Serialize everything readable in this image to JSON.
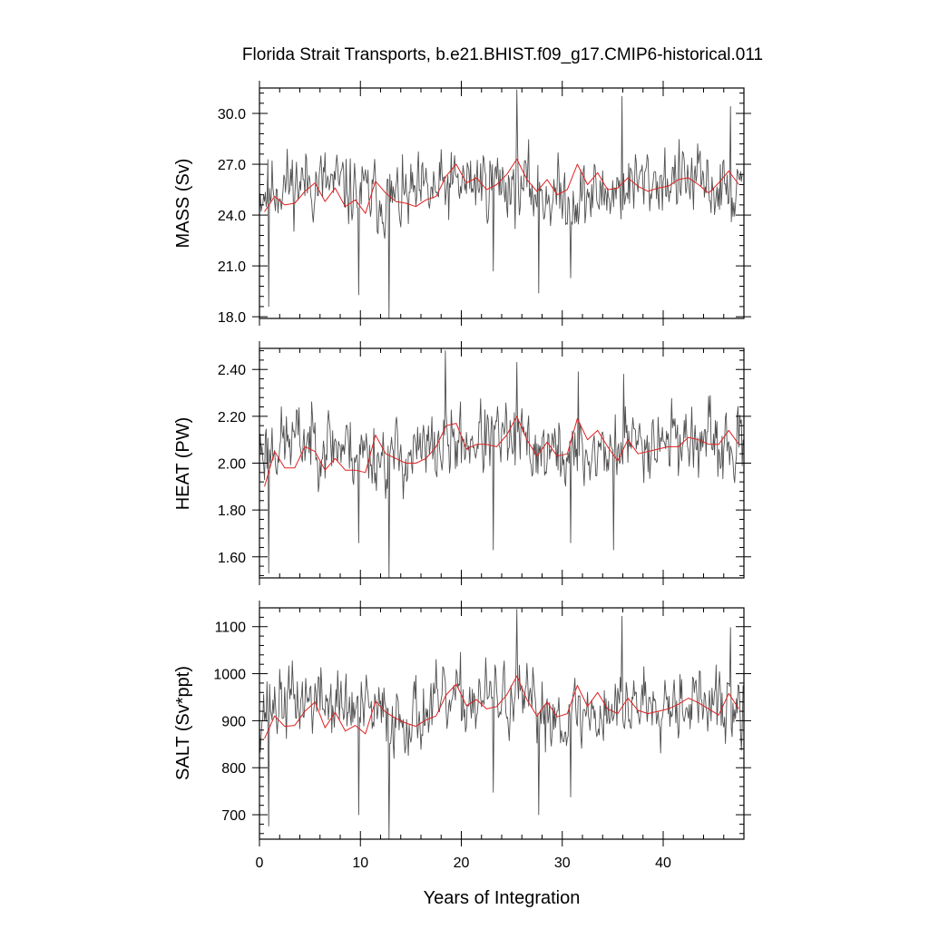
{
  "figure": {
    "title": "Florida Strait Transports, b.e21.BHIST.f09_g17.CMIP6-historical.011",
    "xlabel": "Years of Integration",
    "xlim": [
      0,
      48
    ],
    "x_ticks": [
      0,
      10,
      20,
      30,
      40
    ],
    "x_tick_labels": [
      "0",
      "10",
      "20",
      "30",
      "40"
    ]
  },
  "colors": {
    "monthly": "#505050",
    "annual": "#e02020",
    "axes": "#000000"
  },
  "chart_data": [
    {
      "type": "line",
      "ylabel": "MASS (Sv)",
      "ylim": [
        17.9,
        31.5
      ],
      "y_ticks": [
        18,
        21,
        24,
        27,
        30
      ],
      "y_tick_labels": [
        "18.0",
        "21.0",
        "24.0",
        "27.0",
        "30.0"
      ],
      "series": [
        {
          "kind": "monthly",
          "base": 25.4,
          "amp": 1.5,
          "seed": 11,
          "spikes": [
            [
              0.9,
              18.6
            ],
            [
              9.8,
              19.3
            ],
            [
              12.8,
              17.9
            ],
            [
              23.2,
              20.7
            ],
            [
              25.5,
              31.4
            ],
            [
              27.7,
              19.4
            ],
            [
              30.8,
              20.3
            ],
            [
              35.9,
              31.0
            ],
            [
              46.7,
              30.4
            ]
          ]
        },
        {
          "kind": "annual",
          "x": [
            0.5,
            1.5,
            2.5,
            3.5,
            4.5,
            5.5,
            6.5,
            7.5,
            8.5,
            9.5,
            10.5,
            11.5,
            12.5,
            13.5,
            14.5,
            15.5,
            16.5,
            17.5,
            18.5,
            19.5,
            20.5,
            21.5,
            22.5,
            23.5,
            24.5,
            25.5,
            26.5,
            27.5,
            28.5,
            29.5,
            30.5,
            31.5,
            32.5,
            33.5,
            34.5,
            35.5,
            36.5,
            37.5,
            38.5,
            39.5,
            40.5,
            41.5,
            42.5,
            43.5,
            44.5,
            45.5,
            46.5,
            47.5
          ],
          "y": [
            24.2,
            25.1,
            24.6,
            24.7,
            25.4,
            25.9,
            24.8,
            25.6,
            24.5,
            24.9,
            24.1,
            26.0,
            25.3,
            24.8,
            24.7,
            24.5,
            24.9,
            25.1,
            26.3,
            27.0,
            25.9,
            26.2,
            25.5,
            25.8,
            26.4,
            27.3,
            26.1,
            25.4,
            26.1,
            25.2,
            25.5,
            27.0,
            25.8,
            26.5,
            25.5,
            25.6,
            26.2,
            25.7,
            25.4,
            25.6,
            25.7,
            26.1,
            26.2,
            25.8,
            25.3,
            25.9,
            26.6,
            25.8
          ]
        }
      ]
    },
    {
      "type": "line",
      "ylabel": "HEAT (PW)",
      "ylim": [
        1.51,
        2.49
      ],
      "y_ticks": [
        1.6,
        1.8,
        2.0,
        2.2,
        2.4
      ],
      "y_tick_labels": [
        "1.60",
        "1.80",
        "2.00",
        "2.20",
        "2.40"
      ],
      "series": [
        {
          "kind": "monthly",
          "base": 2.06,
          "amp": 0.11,
          "seed": 23,
          "spikes": [
            [
              0.9,
              1.53
            ],
            [
              9.8,
              1.66
            ],
            [
              12.8,
              1.51
            ],
            [
              18.4,
              2.48
            ],
            [
              23.2,
              1.63
            ],
            [
              25.5,
              2.43
            ],
            [
              30.8,
              1.66
            ],
            [
              31.6,
              2.39
            ],
            [
              35.1,
              1.63
            ],
            [
              36.1,
              2.38
            ]
          ]
        },
        {
          "kind": "annual",
          "x": [
            0.5,
            1.5,
            2.5,
            3.5,
            4.5,
            5.5,
            6.5,
            7.5,
            8.5,
            9.5,
            10.5,
            11.5,
            12.5,
            13.5,
            14.5,
            15.5,
            16.5,
            17.5,
            18.5,
            19.5,
            20.5,
            21.5,
            22.5,
            23.5,
            24.5,
            25.5,
            26.5,
            27.5,
            28.5,
            29.5,
            30.5,
            31.5,
            32.5,
            33.5,
            34.5,
            35.5,
            36.5,
            37.5,
            38.5,
            39.5,
            40.5,
            41.5,
            42.5,
            43.5,
            44.5,
            45.5,
            46.5,
            47.5
          ],
          "y": [
            1.9,
            2.05,
            1.98,
            1.98,
            2.07,
            2.05,
            1.97,
            2.02,
            1.97,
            1.97,
            1.96,
            2.12,
            2.04,
            2.02,
            2.0,
            2.0,
            2.02,
            2.07,
            2.16,
            2.17,
            2.06,
            2.08,
            2.08,
            2.07,
            2.12,
            2.2,
            2.1,
            2.03,
            2.09,
            2.03,
            2.04,
            2.19,
            2.1,
            2.14,
            2.07,
            2.01,
            2.1,
            2.04,
            2.05,
            2.06,
            2.07,
            2.07,
            2.11,
            2.1,
            2.08,
            2.08,
            2.14,
            2.08
          ]
        }
      ]
    },
    {
      "type": "line",
      "ylabel": "SALT (Sv*ppt)",
      "ylim": [
        648,
        1140
      ],
      "y_ticks": [
        700,
        800,
        900,
        1000,
        1100
      ],
      "y_tick_labels": [
        "700",
        "800",
        "900",
        "1000",
        "1100"
      ],
      "series": [
        {
          "kind": "monthly",
          "base": 925,
          "amp": 55,
          "seed": 37,
          "spikes": [
            [
              0.9,
              676
            ],
            [
              9.8,
              700
            ],
            [
              12.8,
              648
            ],
            [
              23.2,
              748
            ],
            [
              25.5,
              1137
            ],
            [
              27.7,
              700
            ],
            [
              30.8,
              738
            ],
            [
              35.9,
              1122
            ],
            [
              46.7,
              1098
            ]
          ]
        },
        {
          "kind": "annual",
          "x": [
            0.5,
            1.5,
            2.5,
            3.5,
            4.5,
            5.5,
            6.5,
            7.5,
            8.5,
            9.5,
            10.5,
            11.5,
            12.5,
            13.5,
            14.5,
            15.5,
            16.5,
            17.5,
            18.5,
            19.5,
            20.5,
            21.5,
            22.5,
            23.5,
            24.5,
            25.5,
            26.5,
            27.5,
            28.5,
            29.5,
            30.5,
            31.5,
            32.5,
            33.5,
            34.5,
            35.5,
            36.5,
            37.5,
            38.5,
            39.5,
            40.5,
            41.5,
            42.5,
            43.5,
            44.5,
            45.5,
            46.5,
            47.5
          ],
          "y": [
            862,
            910,
            888,
            890,
            920,
            940,
            885,
            918,
            878,
            890,
            872,
            942,
            918,
            905,
            895,
            888,
            902,
            910,
            955,
            978,
            932,
            945,
            925,
            930,
            955,
            995,
            945,
            910,
            940,
            908,
            915,
            975,
            930,
            960,
            925,
            915,
            948,
            922,
            915,
            920,
            925,
            935,
            948,
            938,
            925,
            912,
            958,
            925
          ]
        }
      ]
    }
  ]
}
